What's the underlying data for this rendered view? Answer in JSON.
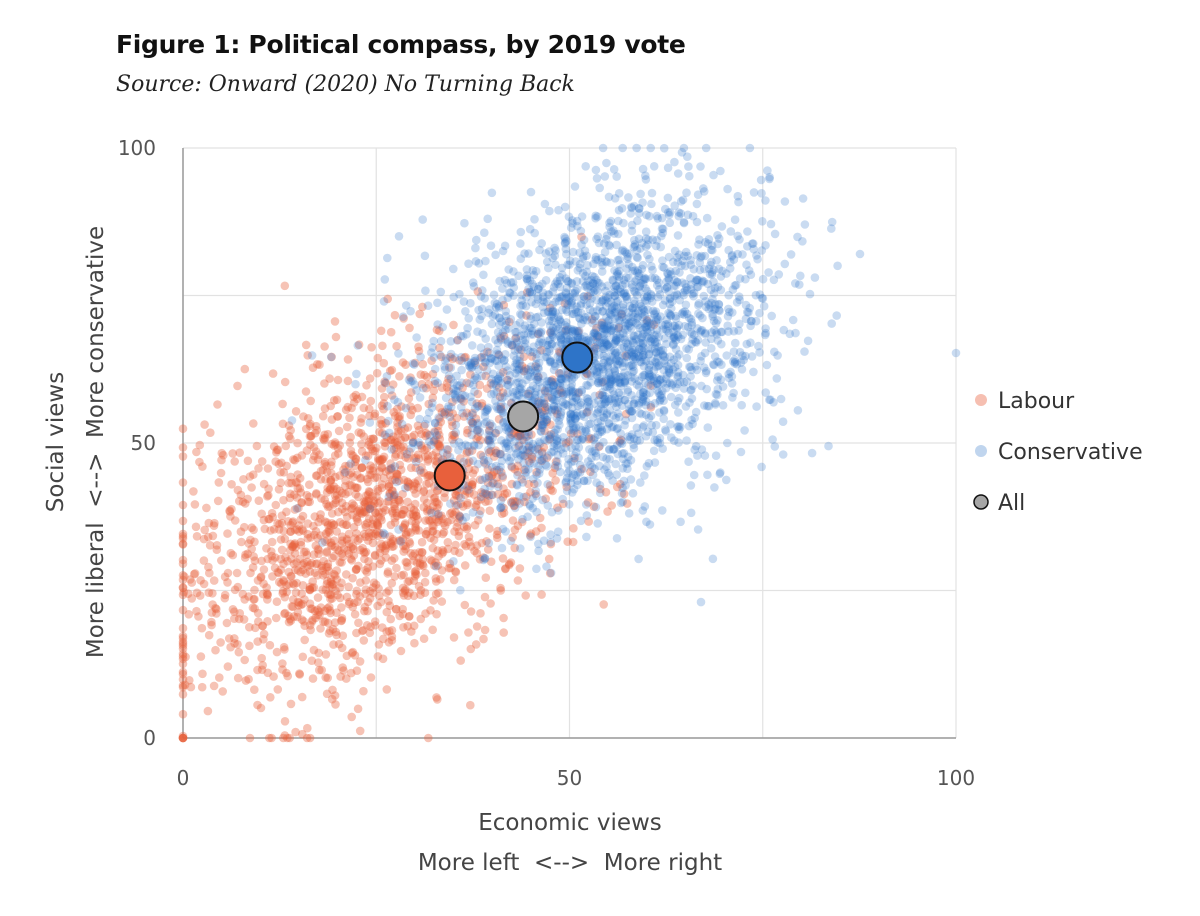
{
  "title": "Figure 1: Political compass, by 2019 vote",
  "subtitle": "Source: Onward (2020) No Turning Back",
  "colors": {
    "labour": "#e8603c",
    "conservative": "#2e74c8",
    "all": "#a6a6a6",
    "grid": "#e2e2e2",
    "axis": "#999999"
  },
  "chart_data": {
    "type": "scatter",
    "title": "Figure 1: Political compass, by 2019 vote",
    "xlabel": "Economic views",
    "xlabel_sub": "More left  <-->  More right",
    "ylabel": "Social views",
    "ylabel_sub": "More liberal  <-->  More conservative",
    "xlim": [
      0,
      100
    ],
    "ylim": [
      0,
      100
    ],
    "xticks": [
      0,
      50,
      100
    ],
    "xtick_labels": [
      "0",
      "50",
      "100"
    ],
    "yticks": [
      0,
      50,
      100
    ],
    "ytick_labels": [
      "0",
      "50",
      "100"
    ],
    "grid_step": 25,
    "legend_position": "right",
    "series": [
      {
        "name": "Labour",
        "color": "#e8603c",
        "kind": "cloud",
        "center": [
          25,
          38
        ],
        "spread": [
          13,
          15
        ],
        "correlation": 0.45,
        "count": 1800
      },
      {
        "name": "Conservative",
        "color": "#2e74c8",
        "kind": "cloud",
        "center": [
          53,
          65
        ],
        "spread": [
          11,
          13
        ],
        "correlation": 0.35,
        "count": 2500
      },
      {
        "name": "All",
        "color": "#a6a6a6",
        "kind": "mean"
      }
    ],
    "means": [
      {
        "name": "Labour",
        "x": 34.5,
        "y": 44.5,
        "color": "#e8603c"
      },
      {
        "name": "Conservative",
        "x": 51,
        "y": 64.5,
        "color": "#2e74c8"
      },
      {
        "name": "All",
        "x": 44,
        "y": 54.5,
        "color": "#a6a6a6"
      }
    ]
  },
  "legend": [
    {
      "label": "Labour",
      "color": "#e8603c",
      "style": "point"
    },
    {
      "label": "Conservative",
      "color": "#2e74c8",
      "style": "point"
    },
    {
      "label": "All",
      "color": "#a6a6a6",
      "style": "marker"
    }
  ]
}
